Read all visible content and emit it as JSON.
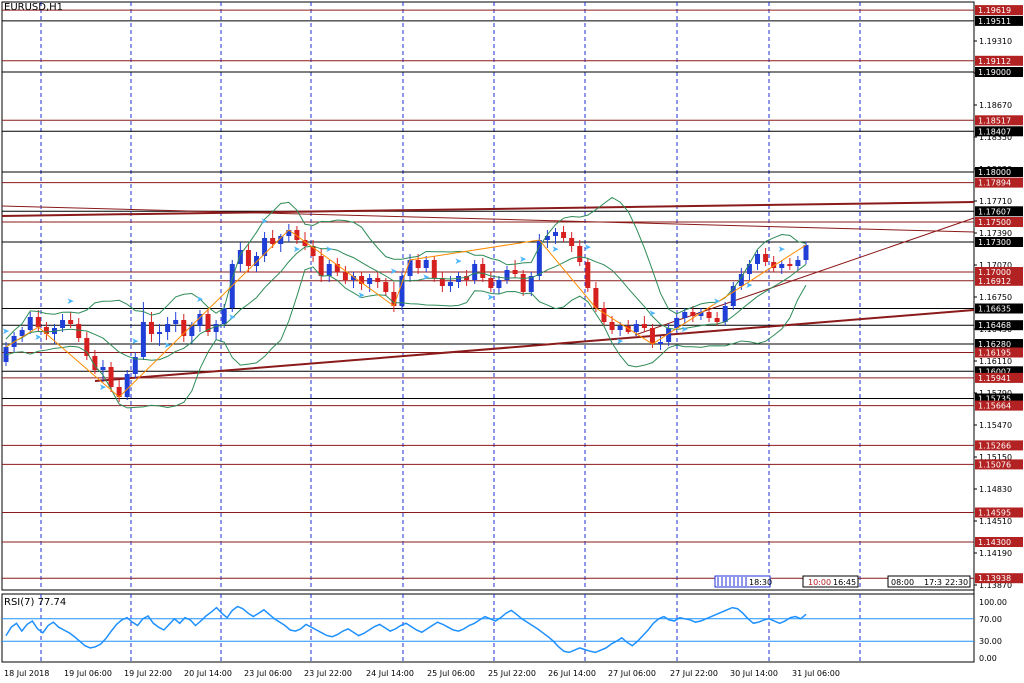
{
  "window": {
    "symbol_title": "EURUSD,H1"
  },
  "indicator": {
    "label": "RSI(7) 77.74",
    "levels": [
      {
        "value": 100,
        "text": "100.00"
      },
      {
        "value": 70,
        "text": "70.00"
      },
      {
        "value": 30,
        "text": "30.00"
      },
      {
        "value": 0,
        "text": "0.00"
      }
    ],
    "series": [
      40,
      55,
      62,
      48,
      60,
      66,
      52,
      45,
      58,
      64,
      55,
      50,
      45,
      38,
      30,
      22,
      18,
      20,
      25,
      35,
      48,
      60,
      68,
      72,
      64,
      58,
      70,
      75,
      62,
      55,
      50,
      60,
      70,
      62,
      72,
      68,
      58,
      66,
      75,
      82,
      90,
      80,
      72,
      85,
      92,
      88,
      80,
      74,
      80,
      86,
      78,
      70,
      64,
      58,
      50,
      48,
      52,
      60,
      55,
      50,
      45,
      40,
      38,
      42,
      48,
      52,
      46,
      40,
      44,
      50,
      56,
      60,
      54,
      48,
      52,
      58,
      62,
      56,
      50,
      46,
      52,
      58,
      64,
      60,
      55,
      50,
      48,
      52,
      58,
      62,
      68,
      74,
      70,
      66,
      72,
      80,
      85,
      78,
      70,
      64,
      58,
      52,
      45,
      38,
      30,
      20,
      12,
      10,
      14,
      18,
      15,
      12,
      10,
      14,
      18,
      25,
      30,
      36,
      28,
      22,
      30,
      40,
      50,
      62,
      70,
      74,
      68,
      66,
      72,
      70,
      68,
      64,
      66,
      70,
      74,
      78,
      82,
      86,
      90,
      88,
      80,
      70,
      62,
      64,
      68,
      70,
      66,
      62,
      66,
      72,
      74,
      70,
      78
    ]
  },
  "price_axis": {
    "ticks": [
      "1.19310",
      "1.18990",
      "1.18670",
      "1.18350",
      "1.18030",
      "1.17710",
      "1.17390",
      "1.17070",
      "1.16750",
      "1.16430",
      "1.16110",
      "1.15790",
      "1.15470",
      "1.15150",
      "1.14830",
      "1.14510",
      "1.14190",
      "1.13870"
    ],
    "tick_values": [
      1.1931,
      1.1899,
      1.1867,
      1.1835,
      1.1803,
      1.1771,
      1.1739,
      1.1707,
      1.1675,
      1.1643,
      1.1611,
      1.1579,
      1.1547,
      1.1515,
      1.1483,
      1.1451,
      1.1419,
      1.1387
    ],
    "range": [
      1.1382,
      1.197
    ]
  },
  "levels": [
    {
      "value": 1.19619,
      "text": "1.19619",
      "kind": "red"
    },
    {
      "value": 1.19511,
      "text": "1.19511",
      "kind": "black"
    },
    {
      "value": 1.19112,
      "text": "1.19112",
      "kind": "red"
    },
    {
      "value": 1.19,
      "text": "1.19000",
      "kind": "black"
    },
    {
      "value": 1.18517,
      "text": "1.18517",
      "kind": "red"
    },
    {
      "value": 1.18407,
      "text": "1.18407",
      "kind": "black"
    },
    {
      "value": 1.18,
      "text": "1.18000",
      "kind": "black"
    },
    {
      "value": 1.17894,
      "text": "1.17894",
      "kind": "red"
    },
    {
      "value": 1.17607,
      "text": "1.17607",
      "kind": "black"
    },
    {
      "value": 1.175,
      "text": "1.17500",
      "kind": "red"
    },
    {
      "value": 1.173,
      "text": "1.17300",
      "kind": "black"
    },
    {
      "value": 1.17,
      "text": "1.17000",
      "kind": "red"
    },
    {
      "value": 1.16912,
      "text": "1.16912",
      "kind": "red"
    },
    {
      "value": 1.16635,
      "text": "1.16635",
      "kind": "black"
    },
    {
      "value": 1.16468,
      "text": "1.16468",
      "kind": "black"
    },
    {
      "value": 1.1628,
      "text": "1.16280",
      "kind": "black"
    },
    {
      "value": 1.16195,
      "text": "1.16195",
      "kind": "red"
    },
    {
      "value": 1.16007,
      "text": "1.16007",
      "kind": "black"
    },
    {
      "value": 1.15941,
      "text": "1.15941",
      "kind": "red"
    },
    {
      "value": 1.15735,
      "text": "1.15735",
      "kind": "black"
    },
    {
      "value": 1.15664,
      "text": "1.15664",
      "kind": "red"
    },
    {
      "value": 1.15266,
      "text": "1.15266",
      "kind": "red"
    },
    {
      "value": 1.15076,
      "text": "1.15076",
      "kind": "red"
    },
    {
      "value": 1.14595,
      "text": "1.14595",
      "kind": "red"
    },
    {
      "value": 1.143,
      "text": "1.14300",
      "kind": "red"
    },
    {
      "value": 1.13938,
      "text": "1.13938",
      "kind": "red"
    }
  ],
  "time_axis": {
    "labels": [
      "18 Jul 2018",
      "19 Jul 06:00",
      "19 Jul 22:00",
      "20 Jul 14:00",
      "23 Jul 06:00",
      "23 Jul 22:00",
      "24 Jul 14:00",
      "25 Jul 06:00",
      "25 Jul 22:00",
      "26 Jul 14:00",
      "27 Jul 06:00",
      "27 Jul 22:00",
      "30 Jul 14:00",
      "31 Jul 06:00"
    ]
  },
  "session_boxes": {
    "left_group": "18:30",
    "mid_group": [
      "10:00",
      "16:45"
    ],
    "right_group": [
      "08:00",
      "17:3",
      "22:30"
    ]
  },
  "candles": [
    [
      1.161,
      1.163,
      1.1606,
      1.1625
    ],
    [
      1.1625,
      1.164,
      1.162,
      1.1636
    ],
    [
      1.1636,
      1.1645,
      1.163,
      1.1642
    ],
    [
      1.1642,
      1.166,
      1.1638,
      1.1655
    ],
    [
      1.1655,
      1.1662,
      1.164,
      1.1645
    ],
    [
      1.1645,
      1.165,
      1.1632,
      1.1638
    ],
    [
      1.1638,
      1.1648,
      1.1628,
      1.1644
    ],
    [
      1.1644,
      1.1658,
      1.164,
      1.1652
    ],
    [
      1.1652,
      1.166,
      1.1644,
      1.1648
    ],
    [
      1.1648,
      1.1654,
      1.163,
      1.1634
    ],
    [
      1.1634,
      1.164,
      1.1612,
      1.1616
    ],
    [
      1.1616,
      1.1622,
      1.1598,
      1.1602
    ],
    [
      1.1602,
      1.1612,
      1.159,
      1.1605
    ],
    [
      1.1605,
      1.161,
      1.158,
      1.1585
    ],
    [
      1.1585,
      1.1592,
      1.157,
      1.1575
    ],
    [
      1.1575,
      1.1602,
      1.1572,
      1.1598
    ],
    [
      1.1598,
      1.162,
      1.1594,
      1.1615
    ],
    [
      1.1615,
      1.167,
      1.1612,
      1.165
    ],
    [
      1.165,
      1.166,
      1.163,
      1.1638
    ],
    [
      1.1638,
      1.1648,
      1.1626,
      1.164
    ],
    [
      1.164,
      1.1655,
      1.1632,
      1.1648
    ],
    [
      1.1648,
      1.166,
      1.164,
      1.1652
    ],
    [
      1.1652,
      1.1658,
      1.163,
      1.1636
    ],
    [
      1.1636,
      1.165,
      1.1628,
      1.1646
    ],
    [
      1.1646,
      1.1662,
      1.164,
      1.1658
    ],
    [
      1.1658,
      1.1664,
      1.1636,
      1.164
    ],
    [
      1.164,
      1.1652,
      1.1632,
      1.1648
    ],
    [
      1.1648,
      1.1668,
      1.1644,
      1.1664
    ],
    [
      1.1664,
      1.1712,
      1.166,
      1.1708
    ],
    [
      1.1708,
      1.173,
      1.17,
      1.1722
    ],
    [
      1.1722,
      1.1728,
      1.17,
      1.1706
    ],
    [
      1.1706,
      1.172,
      1.17,
      1.1716
    ],
    [
      1.1716,
      1.174,
      1.171,
      1.1734
    ],
    [
      1.1734,
      1.1742,
      1.1724,
      1.1728
    ],
    [
      1.1728,
      1.1738,
      1.172,
      1.1736
    ],
    [
      1.1736,
      1.1748,
      1.173,
      1.1742
    ],
    [
      1.1742,
      1.1746,
      1.1728,
      1.1732
    ],
    [
      1.1732,
      1.174,
      1.1722,
      1.1726
    ],
    [
      1.1726,
      1.1732,
      1.171,
      1.1716
    ],
    [
      1.1716,
      1.1724,
      1.169,
      1.1696
    ],
    [
      1.1696,
      1.1712,
      1.169,
      1.1708
    ],
    [
      1.1708,
      1.1714,
      1.1696,
      1.17
    ],
    [
      1.17,
      1.1706,
      1.1688,
      1.1692
    ],
    [
      1.1692,
      1.17,
      1.1684,
      1.1696
    ],
    [
      1.1696,
      1.17,
      1.1682,
      1.1688
    ],
    [
      1.1688,
      1.1698,
      1.168,
      1.1694
    ],
    [
      1.1694,
      1.17,
      1.1684,
      1.169
    ],
    [
      1.169,
      1.1694,
      1.1676,
      1.168
    ],
    [
      1.168,
      1.169,
      1.166,
      1.1666
    ],
    [
      1.1666,
      1.17,
      1.1662,
      1.1696
    ],
    [
      1.1696,
      1.1718,
      1.169,
      1.1712
    ],
    [
      1.1712,
      1.1718,
      1.1698,
      1.1704
    ],
    [
      1.1704,
      1.1716,
      1.17,
      1.1712
    ],
    [
      1.1712,
      1.1716,
      1.169,
      1.1694
    ],
    [
      1.1694,
      1.17,
      1.168,
      1.1686
    ],
    [
      1.1686,
      1.1696,
      1.168,
      1.169
    ],
    [
      1.169,
      1.17,
      1.1684,
      1.1696
    ],
    [
      1.1696,
      1.1702,
      1.1686,
      1.1692
    ],
    [
      1.1692,
      1.1712,
      1.1688,
      1.1708
    ],
    [
      1.1708,
      1.1714,
      1.169,
      1.1694
    ],
    [
      1.1694,
      1.17,
      1.168,
      1.1684
    ],
    [
      1.1684,
      1.1696,
      1.1678,
      1.1692
    ],
    [
      1.1692,
      1.1706,
      1.1688,
      1.1702
    ],
    [
      1.1702,
      1.1712,
      1.1694,
      1.1698
    ],
    [
      1.1698,
      1.1702,
      1.1676,
      1.168
    ],
    [
      1.168,
      1.17,
      1.1676,
      1.1696
    ],
    [
      1.1696,
      1.1738,
      1.1692,
      1.1732
    ],
    [
      1.1732,
      1.1742,
      1.1724,
      1.1736
    ],
    [
      1.1736,
      1.1744,
      1.1728,
      1.174
    ],
    [
      1.174,
      1.1746,
      1.173,
      1.1734
    ],
    [
      1.1734,
      1.174,
      1.172,
      1.1726
    ],
    [
      1.1726,
      1.1732,
      1.1706,
      1.171
    ],
    [
      1.171,
      1.1714,
      1.168,
      1.1684
    ],
    [
      1.1684,
      1.169,
      1.166,
      1.1664
    ],
    [
      1.1664,
      1.167,
      1.1645,
      1.165
    ],
    [
      1.165,
      1.1656,
      1.1638,
      1.1642
    ],
    [
      1.1642,
      1.165,
      1.1636,
      1.1646
    ],
    [
      1.1646,
      1.1652,
      1.1638,
      1.164
    ],
    [
      1.164,
      1.1652,
      1.1636,
      1.1648
    ],
    [
      1.1648,
      1.1656,
      1.164,
      1.1644
    ],
    [
      1.1644,
      1.1648,
      1.1624,
      1.1628
    ],
    [
      1.1628,
      1.1636,
      1.1622,
      1.163
    ],
    [
      1.163,
      1.1648,
      1.1626,
      1.1644
    ],
    [
      1.1644,
      1.1658,
      1.164,
      1.1654
    ],
    [
      1.1654,
      1.1664,
      1.1648,
      1.166
    ],
    [
      1.166,
      1.1666,
      1.165,
      1.1656
    ],
    [
      1.1656,
      1.1664,
      1.1652,
      1.166
    ],
    [
      1.166,
      1.1664,
      1.165,
      1.1654
    ],
    [
      1.1654,
      1.166,
      1.1646,
      1.165
    ],
    [
      1.165,
      1.167,
      1.1646,
      1.1666
    ],
    [
      1.1666,
      1.169,
      1.1662,
      1.1686
    ],
    [
      1.1686,
      1.1704,
      1.1682,
      1.1698
    ],
    [
      1.1698,
      1.1712,
      1.1692,
      1.1708
    ],
    [
      1.1708,
      1.1722,
      1.1702,
      1.1718
    ],
    [
      1.1718,
      1.1724,
      1.1706,
      1.171
    ],
    [
      1.171,
      1.1716,
      1.17,
      1.1704
    ],
    [
      1.1704,
      1.1712,
      1.1698,
      1.1708
    ],
    [
      1.1708,
      1.1714,
      1.1702,
      1.1706
    ],
    [
      1.1706,
      1.1716,
      1.1702,
      1.1712
    ],
    [
      1.1712,
      1.173,
      1.1708,
      1.1727
    ]
  ]
}
